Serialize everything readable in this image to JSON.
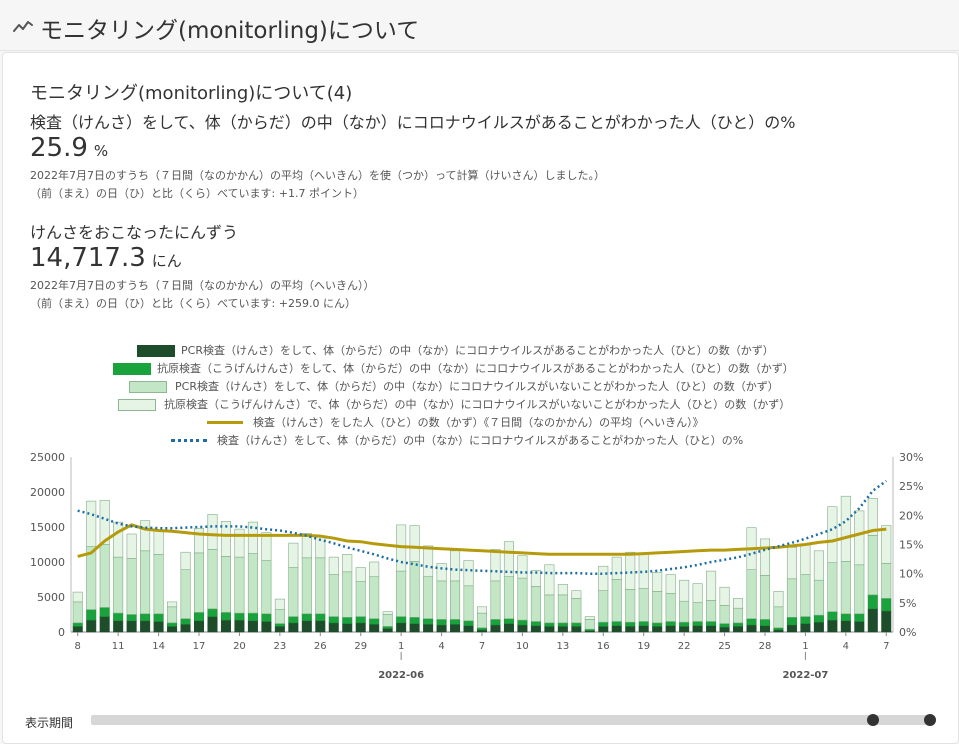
{
  "header": {
    "title": "モニタリング(monitorling)について",
    "icon": "trend-line-icon"
  },
  "card": {
    "section_title": "モニタリング(monitorling)について(4)",
    "positive_rate": {
      "title": "検査（けんさ）をして、体（からだ）の中（なか）にコロナウイルスがあることがわかった人（ひと）の%",
      "value": "25.9",
      "unit": "%",
      "note1": "2022年7月7日のすうち（７日間（なのかかん）の平均（へいきん）を使（つか）って計算（けいさん）しました。）",
      "note2": "（前（まえ）の日（ひ）と比（くら）べています: +1.7 ポイント）"
    },
    "tests": {
      "title": "けんさをおこなったにんずう",
      "value": "14,717.3",
      "unit": "にん",
      "note1": "2022年7月7日のすうち（７日間（なのかかん）の平均（へいきん））",
      "note2": "（前（まえ）の日（ひ）と比（くら）べています: +259.0 にん）"
    }
  },
  "legend": [
    {
      "label": "PCR検査（けんさ）をして、体（からだ）の中（なか）にコロナウイルスがあることがわかった人（ひと）の数（かず）",
      "color": "#1e4d2b"
    },
    {
      "label": "抗原検査（こうげんけんさ）をして、体（からだ）の中（なか）にコロナウイルスがあることがわかった人（ひと）の数（かず）",
      "color": "#1aa33c"
    },
    {
      "label": "PCR検査（けんさ）をして、体（からだ）の中（なか）にコロナウイルスがいないことがわかった人（ひと）の数（かず）",
      "color": "#c3e6c6"
    },
    {
      "label": "抗原検査（こうげんけんさ）で、体（からだ）の中（なか）にコロナウイルスがいないことがわかった人（ひと）の数（かず）",
      "color": "#e6f4e6"
    },
    {
      "label": "検査（けんさ）をした人（ひと）の数（かず）《７日間（なのかかん）の平均（へいきん）》",
      "color": "#b59b0b"
    },
    {
      "label": "検査（けんさ）をして、体（からだ）の中（なか）にコロナウイルスがあることがわかった人（ひと）の%",
      "color": "#1c6ea4"
    }
  ],
  "period_label": "表示期間",
  "chart_data": {
    "type": "bar",
    "stacked": true,
    "x": [
      "5/8",
      "5/9",
      "5/10",
      "5/11",
      "5/12",
      "5/13",
      "5/14",
      "5/15",
      "5/16",
      "5/17",
      "5/18",
      "5/19",
      "5/20",
      "5/21",
      "5/22",
      "5/23",
      "5/24",
      "5/25",
      "5/26",
      "5/27",
      "5/28",
      "5/29",
      "5/30",
      "5/31",
      "6/1",
      "6/2",
      "6/3",
      "6/4",
      "6/5",
      "6/6",
      "6/7",
      "6/8",
      "6/9",
      "6/10",
      "6/11",
      "6/12",
      "6/13",
      "6/14",
      "6/15",
      "6/16",
      "6/17",
      "6/18",
      "6/19",
      "6/20",
      "6/21",
      "6/22",
      "6/23",
      "6/24",
      "6/25",
      "6/26",
      "6/27",
      "6/28",
      "6/29",
      "6/30",
      "7/1",
      "7/2",
      "7/3",
      "7/4",
      "7/5",
      "7/6",
      "7/7"
    ],
    "x_tick_labels": [
      "8",
      "11",
      "14",
      "17",
      "20",
      "23",
      "26",
      "29",
      "1",
      "4",
      "7",
      "10",
      "13",
      "16",
      "19",
      "22",
      "25",
      "28",
      "1",
      "4",
      "7"
    ],
    "x_tick_index": [
      0,
      3,
      6,
      9,
      12,
      15,
      18,
      21,
      24,
      27,
      30,
      33,
      36,
      39,
      42,
      45,
      48,
      51,
      54,
      57,
      60
    ],
    "month_labels": [
      {
        "label": "2022-06",
        "index": 24
      },
      {
        "label": "2022-07",
        "index": 54
      }
    ],
    "y_left": {
      "min": 0,
      "max": 25000,
      "ticks": [
        0,
        5000,
        10000,
        15000,
        20000,
        25000
      ]
    },
    "y_right": {
      "min": 0,
      "max": 30,
      "ticks": [
        "0%",
        "5%",
        "10%",
        "15%",
        "20%",
        "25%",
        "30%"
      ]
    },
    "series": [
      {
        "name": "PCR検査（けんさ）をして、体（からだ）の中（なか）にコロナウイルスがあることがわかった人（ひと）の数（かず）",
        "type": "bar",
        "values": [
          800,
          1700,
          2200,
          1600,
          1600,
          1600,
          1500,
          800,
          1100,
          1600,
          2200,
          1700,
          1700,
          1600,
          1500,
          800,
          1300,
          1600,
          1600,
          1300,
          1200,
          1300,
          1100,
          500,
          1300,
          1200,
          1100,
          1000,
          1100,
          900,
          300,
          1000,
          1200,
          1000,
          900,
          800,
          800,
          800,
          200,
          800,
          900,
          800,
          900,
          800,
          900,
          800,
          900,
          900,
          700,
          800,
          1000,
          900,
          300,
          1000,
          1200,
          1400,
          1700,
          1600,
          1500,
          3300,
          3000
        ]
      },
      {
        "name": "抗原検査（こうげんけんさ）をして、体（からだ）の中（なか）にコロナウイルスがあることがわかった人（ひと）の数（かず）",
        "type": "bar",
        "values": [
          500,
          1500,
          1300,
          1100,
          900,
          1000,
          1100,
          500,
          800,
          1200,
          1100,
          1100,
          1000,
          1100,
          1100,
          400,
          900,
          1000,
          1000,
          900,
          900,
          900,
          800,
          300,
          900,
          900,
          800,
          800,
          700,
          700,
          300,
          800,
          700,
          700,
          600,
          500,
          500,
          500,
          200,
          600,
          600,
          600,
          600,
          500,
          600,
          600,
          600,
          600,
          500,
          500,
          900,
          900,
          300,
          1100,
          1000,
          1000,
          1200,
          1000,
          1100,
          2000,
          1800
        ]
      },
      {
        "name": "PCR検査（けんさ）をして、体（からだ）の中（なか）にコロナウイルスがいないことがわかった人（ひと）の数（かず）",
        "type": "bar",
        "values": [
          3000,
          9000,
          9000,
          8000,
          8000,
          9000,
          8500,
          2300,
          7000,
          8500,
          8500,
          8000,
          8000,
          8500,
          7600,
          2000,
          7000,
          8000,
          8000,
          6000,
          6500,
          5000,
          6000,
          1700,
          6500,
          8000,
          6000,
          5500,
          5500,
          5000,
          2100,
          5500,
          6000,
          6000,
          5000,
          4000,
          4000,
          3500,
          1400,
          4500,
          6000,
          4700,
          4700,
          4500,
          4000,
          3000,
          2700,
          3000,
          2600,
          2100,
          7000,
          6300,
          3000,
          5500,
          6000,
          5000,
          7000,
          7500,
          7000,
          8500,
          5000
        ]
      },
      {
        "name": "抗原検査（こうげんけんさ）で、体（からだ）の中（なか）にコロナウイルスがいないことがわかった人（ひと）の数（かず）",
        "type": "bar",
        "values": [
          1400,
          6500,
          6300,
          5000,
          3500,
          4300,
          3500,
          700,
          2500,
          3500,
          5000,
          5000,
          4000,
          4500,
          4000,
          1500,
          3500,
          3500,
          3000,
          2500,
          2500,
          2000,
          2100,
          400,
          6600,
          5100,
          4400,
          2500,
          4300,
          3600,
          900,
          4500,
          5000,
          3200,
          2300,
          4300,
          1500,
          1100,
          400,
          3500,
          3200,
          5300,
          5100,
          2700,
          2700,
          3000,
          2700,
          4200,
          2600,
          1400,
          6000,
          5200,
          2200,
          4500,
          4300,
          4200,
          8000,
          9300,
          7700,
          5300,
          5400
        ]
      },
      {
        "name": "検査（けんさ）をした人（ひと）の数（かず）《７日間（なのかかん）の平均（へいきん）》",
        "type": "line",
        "axis": "left",
        "values": [
          10800,
          11300,
          13000,
          14300,
          15300,
          14700,
          14500,
          14400,
          14200,
          14000,
          13900,
          13800,
          13800,
          13800,
          13800,
          13800,
          13800,
          13800,
          13700,
          13400,
          13000,
          12900,
          12600,
          12400,
          12200,
          12100,
          12000,
          11900,
          11800,
          11700,
          11600,
          11500,
          11400,
          11300,
          11200,
          11100,
          11100,
          11100,
          11100,
          11100,
          11100,
          11100,
          11200,
          11300,
          11400,
          11500,
          11600,
          11700,
          11700,
          11800,
          11900,
          12000,
          12100,
          12300,
          12500,
          12800,
          13000,
          13500,
          14000,
          14500,
          14700
        ]
      },
      {
        "name": "検査（けんさ）をして、体（からだ）の中（なか）にコロナウイルスがあることがわかった人（ひと）の%",
        "type": "line",
        "axis": "right",
        "dashed": true,
        "values": [
          20.8,
          20.2,
          19.4,
          18.6,
          18.1,
          17.9,
          17.8,
          17.8,
          17.9,
          18.0,
          18.1,
          18.1,
          18.1,
          17.9,
          17.6,
          17.4,
          17.0,
          16.5,
          15.8,
          15.2,
          14.5,
          13.9,
          13.3,
          12.6,
          12.0,
          11.6,
          11.2,
          10.9,
          10.7,
          10.6,
          10.5,
          10.4,
          10.3,
          10.2,
          10.2,
          10.1,
          10.1,
          10.1,
          10.0,
          10.0,
          10.1,
          10.2,
          10.3,
          10.5,
          10.8,
          11.1,
          11.5,
          12.0,
          12.4,
          12.8,
          13.4,
          14.1,
          14.7,
          15.3,
          16.0,
          16.8,
          17.6,
          19.0,
          21.2,
          24.2,
          25.9
        ]
      }
    ]
  }
}
